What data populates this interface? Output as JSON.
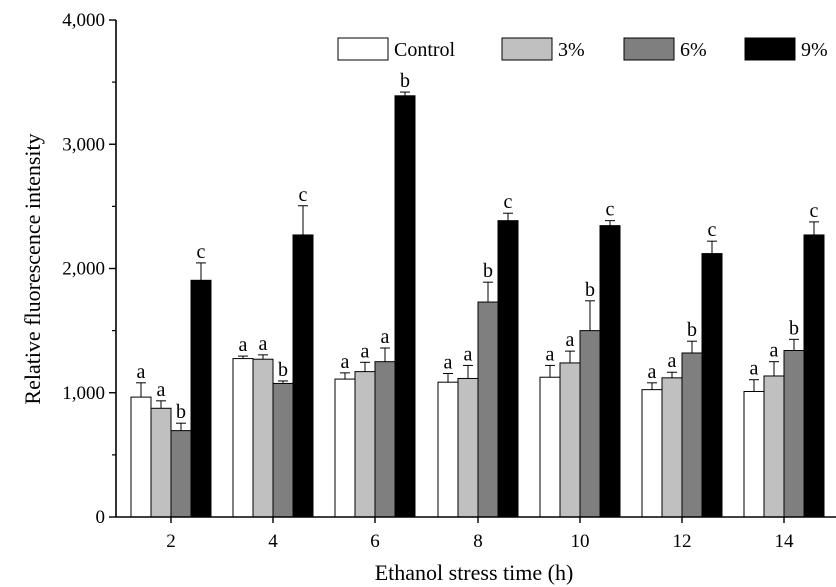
{
  "chart_data": {
    "type": "bar",
    "xlabel": "Ethanol stress time (h)",
    "ylabel": "Relative fluorescence intensity",
    "ylim": [
      0,
      4000
    ],
    "yticks": [
      0,
      1000,
      2000,
      3000,
      4000
    ],
    "ytick_labels": [
      "0",
      "1,000",
      "2,000",
      "3,000",
      "4,000"
    ],
    "categories": [
      "2",
      "4",
      "6",
      "8",
      "10",
      "12",
      "14"
    ],
    "legend_position": "top-right",
    "series": [
      {
        "name": "Control",
        "color": "#ffffff",
        "values": [
          965,
          1275,
          1110,
          1085,
          1125,
          1025,
          1010
        ],
        "errors": [
          115,
          20,
          50,
          70,
          95,
          55,
          95
        ],
        "labels": [
          "a",
          "a",
          "a",
          "a",
          "a",
          "a",
          "a"
        ]
      },
      {
        "name": "3%",
        "color": "#c0c0c0",
        "values": [
          875,
          1270,
          1170,
          1115,
          1240,
          1120,
          1135
        ],
        "errors": [
          60,
          35,
          75,
          105,
          95,
          45,
          115
        ],
        "labels": [
          "a",
          "a",
          "a",
          "a",
          "a",
          "a",
          "a"
        ]
      },
      {
        "name": "6%",
        "color": "#7f7f7f",
        "values": [
          695,
          1075,
          1250,
          1730,
          1500,
          1320,
          1340
        ],
        "errors": [
          60,
          20,
          110,
          160,
          240,
          95,
          90
        ],
        "labels": [
          "b",
          "b",
          "a",
          "b",
          "b",
          "b",
          "b"
        ]
      },
      {
        "name": "9%",
        "color": "#000000",
        "values": [
          1905,
          2270,
          3390,
          2385,
          2345,
          2120,
          2270
        ],
        "errors": [
          140,
          235,
          30,
          60,
          40,
          100,
          105
        ],
        "labels": [
          "c",
          "c",
          "b",
          "c",
          "c",
          "c",
          "c"
        ]
      }
    ]
  }
}
